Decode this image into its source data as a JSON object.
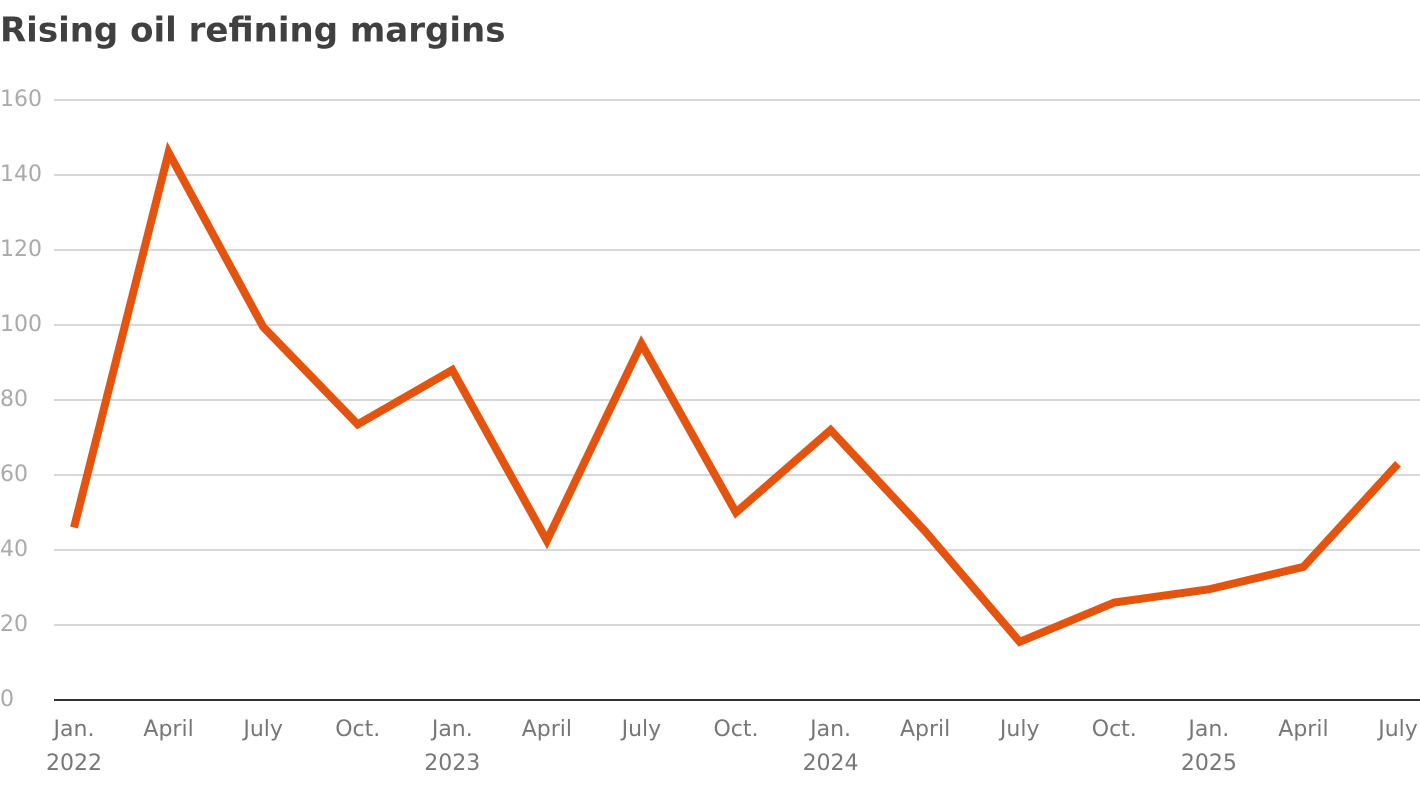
{
  "chart_data": {
    "type": "line",
    "title": "Rising oil refining margins",
    "categories": [
      "Jan.",
      "April",
      "July",
      "Oct.",
      "Jan.",
      "April",
      "July",
      "Oct.",
      "Jan.",
      "April",
      "July",
      "Oct.",
      "Jan.",
      "April",
      "July"
    ],
    "years": [
      "2022",
      null,
      null,
      null,
      "2023",
      null,
      null,
      null,
      "2024",
      null,
      null,
      null,
      "2025",
      null,
      null
    ],
    "series": [
      {
        "name": "Refining margin",
        "color": "#e4540f",
        "values": [
          46,
          146,
          99.5,
          73.5,
          88,
          42.5,
          95,
          50,
          72,
          45,
          15.5,
          26,
          29.5,
          35.5,
          63
        ]
      }
    ],
    "ylim": [
      0,
      160
    ],
    "yticks": [
      0,
      20,
      40,
      60,
      80,
      100,
      120,
      140,
      160
    ],
    "grid": true
  }
}
